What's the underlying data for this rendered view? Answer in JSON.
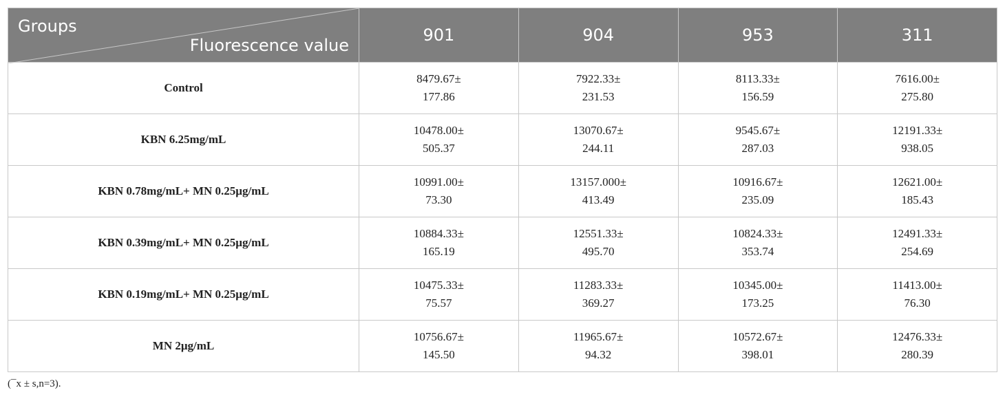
{
  "table": {
    "header": {
      "corner_top": "Groups",
      "corner_bottom": "Fluorescence value",
      "columns": [
        "901",
        "904",
        "953",
        "311"
      ]
    },
    "rows": [
      {
        "group": "Control",
        "cells": [
          [
            "8479.67±",
            "177.86"
          ],
          [
            "7922.33±",
            "231.53"
          ],
          [
            "8113.33±",
            "156.59"
          ],
          [
            "7616.00±",
            "275.80"
          ]
        ]
      },
      {
        "group": "KBN 6.25mg/mL",
        "cells": [
          [
            "10478.00±",
            "505.37"
          ],
          [
            "13070.67±",
            "244.11"
          ],
          [
            "9545.67±",
            "287.03"
          ],
          [
            "12191.33±",
            "938.05"
          ]
        ]
      },
      {
        "group": "KBN 0.78mg/mL+ MN 0.25μg/mL",
        "cells": [
          [
            "10991.00±",
            "73.30"
          ],
          [
            "13157.000±",
            "413.49"
          ],
          [
            "10916.67±",
            "235.09"
          ],
          [
            "12621.00±",
            "185.43"
          ]
        ]
      },
      {
        "group": "KBN 0.39mg/mL+ MN 0.25μg/mL",
        "cells": [
          [
            "10884.33±",
            "165.19"
          ],
          [
            "12551.33±",
            "495.70"
          ],
          [
            "10824.33±",
            "353.74"
          ],
          [
            "12491.33±",
            "254.69"
          ]
        ]
      },
      {
        "group": "KBN 0.19mg/mL+ MN 0.25μg/mL",
        "cells": [
          [
            "10475.33±",
            "75.57"
          ],
          [
            "11283.33±",
            "369.27"
          ],
          [
            "10345.00±",
            "173.25"
          ],
          [
            "11413.00±",
            "76.30"
          ]
        ]
      },
      {
        "group": "MN 2μg/mL",
        "cells": [
          [
            "10756.67±",
            "145.50"
          ],
          [
            "11965.67±",
            "94.32"
          ],
          [
            "10572.67±",
            "398.01"
          ],
          [
            "12476.33±",
            "280.39"
          ]
        ]
      }
    ]
  },
  "footnote": "(¯x ± s,n=3)."
}
